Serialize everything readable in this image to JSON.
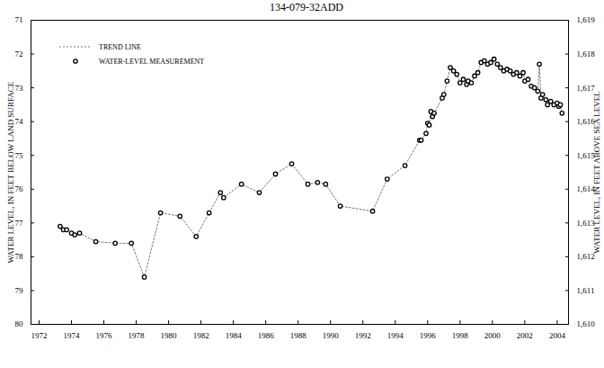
{
  "chart_data": {
    "type": "line",
    "title": "134-079-32ADD",
    "y_label": "WATER LEVEL, IN FEET BELOW LAND SURFACE",
    "y2_label": "WATER LEVEL, IN FEET ABOVE SEA LEVEL",
    "xlim": [
      1971.5,
      2004.7
    ],
    "xticks": [
      1972,
      1974,
      1976,
      1978,
      1980,
      1982,
      1984,
      1986,
      1988,
      1990,
      1992,
      1994,
      1996,
      1998,
      2000,
      2002,
      2004
    ],
    "ylim": [
      80,
      71
    ],
    "yticks": [
      71,
      72,
      73,
      74,
      75,
      76,
      77,
      78,
      79,
      80
    ],
    "y2lim": [
      1610,
      1619
    ],
    "y2ticks": [
      {
        "value": 1610,
        "label": "1,610"
      },
      {
        "value": 1611,
        "label": "1,611"
      },
      {
        "value": 1612,
        "label": "1,612"
      },
      {
        "value": 1613,
        "label": "1,613"
      },
      {
        "value": 1614,
        "label": "1,614"
      },
      {
        "value": 1615,
        "label": "1,615"
      },
      {
        "value": 1616,
        "label": "1,616"
      },
      {
        "value": 1617,
        "label": "1,617"
      },
      {
        "value": 1618,
        "label": "1,618"
      },
      {
        "value": 1619,
        "label": "1,619"
      }
    ],
    "grid": false,
    "legend": "top-left",
    "x": [
      1973.3,
      1973.5,
      1973.7,
      1974.0,
      1974.2,
      1974.5,
      1975.5,
      1976.7,
      1977.7,
      1978.5,
      1979.5,
      1980.7,
      1981.7,
      1982.5,
      1983.2,
      1983.4,
      1984.5,
      1985.6,
      1986.6,
      1987.6,
      1988.6,
      1989.2,
      1989.7,
      1990.6,
      1992.6,
      1993.5,
      1994.6,
      1995.5,
      1995.6,
      1995.9,
      1996.0,
      1996.1,
      1996.2,
      1996.3,
      1996.4,
      1996.9,
      1997.0,
      1997.2,
      1997.4,
      1997.6,
      1997.8,
      1998.0,
      1998.2,
      1998.4,
      1998.5,
      1998.7,
      1998.9,
      1999.1,
      1999.3,
      1999.5,
      1999.7,
      1999.9,
      2000.1,
      2000.3,
      2000.5,
      2000.7,
      2000.9,
      2001.1,
      2001.3,
      2001.5,
      2001.7,
      2001.9,
      2002.0,
      2002.2,
      2002.4,
      2002.6,
      2002.8,
      2002.9,
      2003.0,
      2003.1,
      2003.3,
      2003.4,
      2003.6,
      2003.8,
      2004.0,
      2004.1,
      2004.2,
      2004.3
    ],
    "series": [
      {
        "name": "TREND LINE",
        "type": "line",
        "line_style": "dashed",
        "color": "#555555",
        "values": [
          77.1,
          77.2,
          77.2,
          77.3,
          77.35,
          77.3,
          77.55,
          77.6,
          77.6,
          78.6,
          76.7,
          76.8,
          77.4,
          76.7,
          76.1,
          76.25,
          75.85,
          76.1,
          75.55,
          75.25,
          75.85,
          75.8,
          75.85,
          76.5,
          76.65,
          75.7,
          75.3,
          74.55,
          74.55,
          74.35,
          74.05,
          74.1,
          73.7,
          73.85,
          73.75,
          73.3,
          73.2,
          72.8,
          72.4,
          72.5,
          72.6,
          72.85,
          72.75,
          72.9,
          72.8,
          72.85,
          72.65,
          72.55,
          72.25,
          72.2,
          72.3,
          72.25,
          72.15,
          72.3,
          72.4,
          72.5,
          72.45,
          72.5,
          72.6,
          72.55,
          72.65,
          72.55,
          72.8,
          72.75,
          72.95,
          73.0,
          73.1,
          72.3,
          73.3,
          73.2,
          73.35,
          73.5,
          73.4,
          73.5,
          73.45,
          73.55,
          73.5,
          73.75
        ]
      },
      {
        "name": "WATER-LEVEL MEASUREMENT",
        "type": "scatter",
        "marker": "circle",
        "color": "#000000",
        "values": [
          77.1,
          77.2,
          77.2,
          77.3,
          77.35,
          77.3,
          77.55,
          77.6,
          77.6,
          78.6,
          76.7,
          76.8,
          77.4,
          76.7,
          76.1,
          76.25,
          75.85,
          76.1,
          75.55,
          75.25,
          75.85,
          75.8,
          75.85,
          76.5,
          76.65,
          75.7,
          75.3,
          74.55,
          74.55,
          74.35,
          74.05,
          74.1,
          73.7,
          73.85,
          73.75,
          73.3,
          73.2,
          72.8,
          72.4,
          72.5,
          72.6,
          72.85,
          72.75,
          72.9,
          72.8,
          72.85,
          72.65,
          72.55,
          72.25,
          72.2,
          72.3,
          72.25,
          72.15,
          72.3,
          72.4,
          72.5,
          72.45,
          72.5,
          72.6,
          72.55,
          72.65,
          72.55,
          72.8,
          72.75,
          72.95,
          73.0,
          73.1,
          72.3,
          73.3,
          73.2,
          73.35,
          73.5,
          73.4,
          73.5,
          73.45,
          73.55,
          73.5,
          73.75
        ]
      }
    ]
  }
}
